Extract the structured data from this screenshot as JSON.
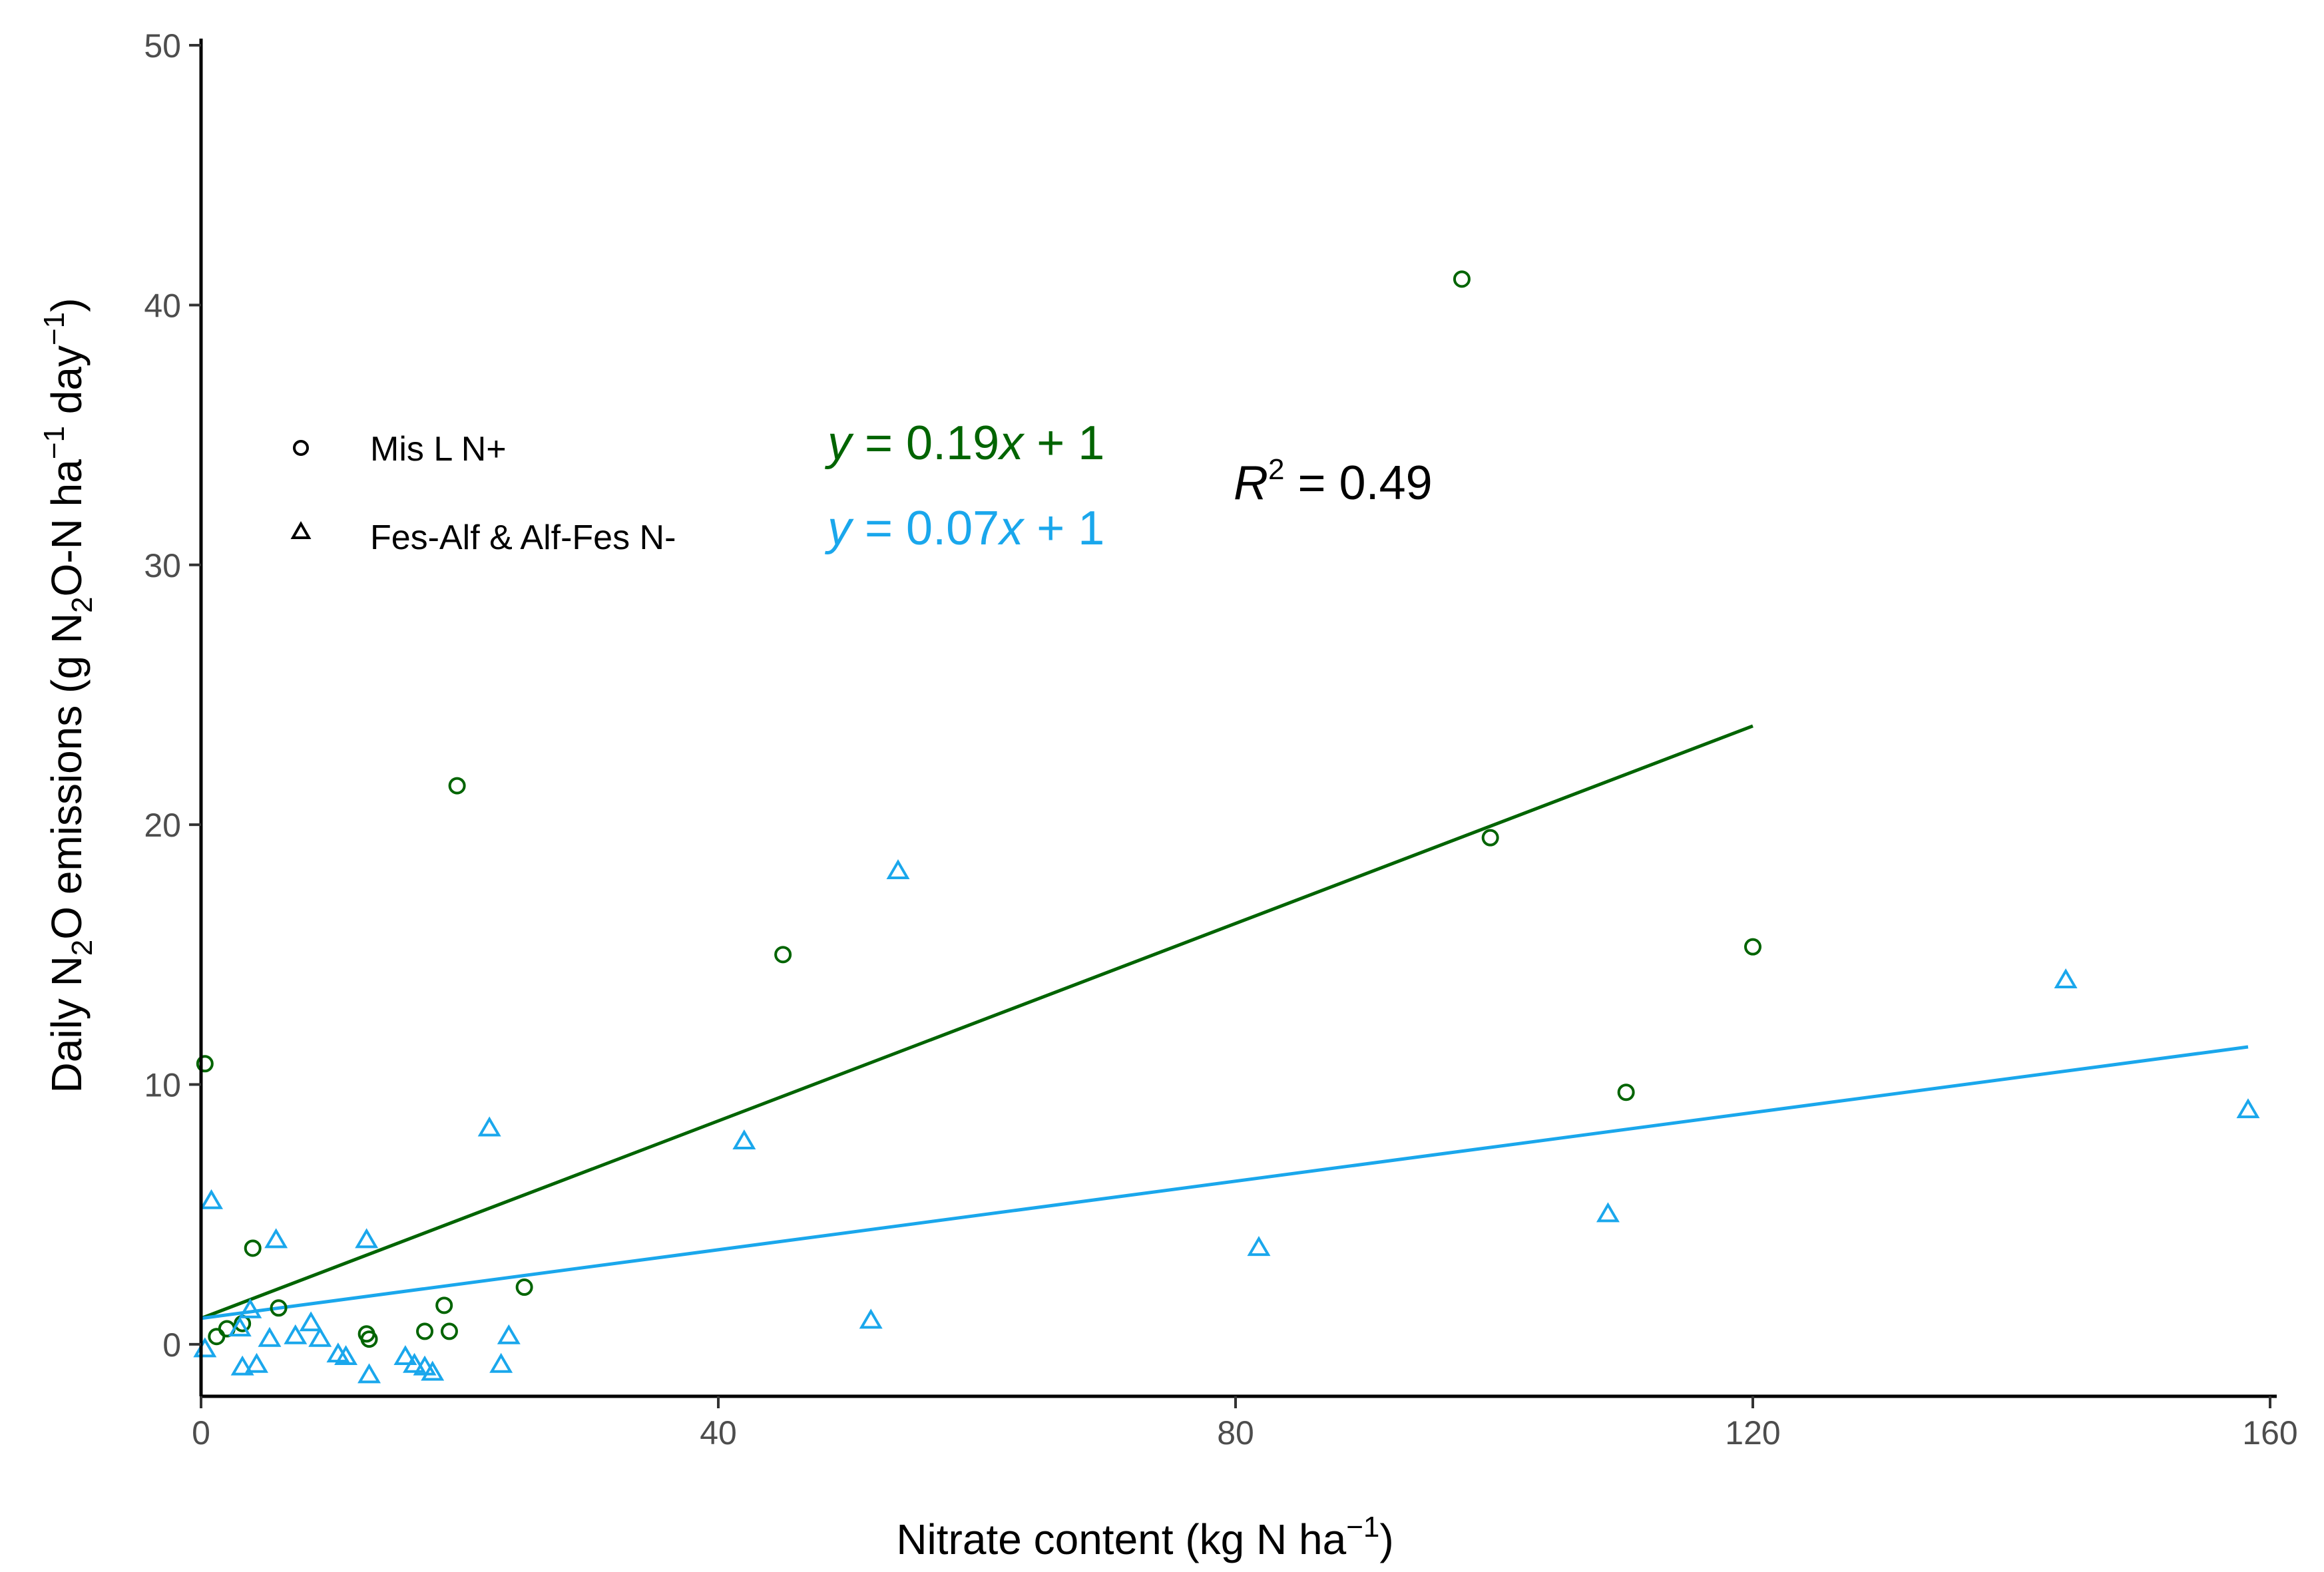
{
  "chart_data": {
    "type": "scatter",
    "xlabel": {
      "main": "Nitrate content (kg N ha",
      "sup": "−1",
      "end": ")"
    },
    "ylabel": {
      "part1": "Daily N",
      "sub1": "2",
      "part2": "O emissions (g N",
      "sub2": "2",
      "part3": "O-N ha",
      "sup1": "−1",
      "part4": " day",
      "sup2": "−1",
      "part5": ")"
    },
    "xlim": [
      0,
      160
    ],
    "ylim": [
      -2,
      50
    ],
    "x_ticks": [
      0,
      40,
      80,
      120,
      160
    ],
    "x_tick_labels": [
      "0",
      "40",
      "80",
      "120",
      "160"
    ],
    "y_ticks": [
      0,
      10,
      20,
      30,
      40,
      50
    ],
    "y_tick_labels": [
      "0",
      "10",
      "20",
      "30",
      "40",
      "50"
    ],
    "grid": false,
    "legend_position": "top-left",
    "series": [
      {
        "name": "Mis L N+",
        "marker": "circle",
        "color": "#006400",
        "points": [
          [
            0.3,
            10.8
          ],
          [
            1.2,
            0.3
          ],
          [
            2,
            0.6
          ],
          [
            3.2,
            0.8
          ],
          [
            4,
            3.7
          ],
          [
            6,
            1.4
          ],
          [
            12.8,
            0.4
          ],
          [
            13,
            0.2
          ],
          [
            17.3,
            0.5
          ],
          [
            18.8,
            1.5
          ],
          [
            19.2,
            0.5
          ],
          [
            19.8,
            21.5
          ],
          [
            25,
            2.2
          ],
          [
            45,
            15
          ],
          [
            97.5,
            41
          ],
          [
            99.7,
            19.5
          ],
          [
            110.2,
            9.7
          ],
          [
            120,
            15.3
          ]
        ],
        "fit": {
          "slope": 0.19,
          "intercept": 1
        },
        "equation": {
          "lhs": "y",
          "eq": " = 0.19",
          "var": "x",
          "rest": " + 1"
        }
      },
      {
        "name": "Fes-Alf & Alf-Fes N-",
        "marker": "triangle",
        "color": "#1aa7ec",
        "points": [
          [
            0.3,
            -0.2
          ],
          [
            0.8,
            5.5
          ],
          [
            3,
            0.6
          ],
          [
            3.2,
            -0.9
          ],
          [
            3.8,
            1.3
          ],
          [
            4.3,
            -0.8
          ],
          [
            5.3,
            0.2
          ],
          [
            5.8,
            4.0
          ],
          [
            7.3,
            0.3
          ],
          [
            8.5,
            0.8
          ],
          [
            9.2,
            0.2
          ],
          [
            10.6,
            -0.4
          ],
          [
            11.2,
            -0.5
          ],
          [
            12.8,
            4.0
          ],
          [
            13,
            -1.2
          ],
          [
            15.8,
            -0.5
          ],
          [
            16.5,
            -0.8
          ],
          [
            17.3,
            -0.9
          ],
          [
            17.9,
            -1.1
          ],
          [
            22.3,
            8.3
          ],
          [
            23.2,
            -0.8
          ],
          [
            23.8,
            0.3
          ],
          [
            42,
            7.8
          ],
          [
            51.8,
            0.9
          ],
          [
            53.9,
            18.2
          ],
          [
            81.8,
            3.7
          ],
          [
            108.8,
            5.0
          ],
          [
            144.2,
            14
          ],
          [
            158.3,
            9.0
          ]
        ],
        "fit": {
          "slope": 0.066,
          "intercept": 1.0
        },
        "equation": {
          "lhs": "y",
          "eq": " = 0.07",
          "var": "x",
          "rest": " + 1"
        }
      }
    ],
    "annotations": {
      "r2_symbol": "R",
      "r2_sup": "2",
      "r2_value": " = 0.49"
    }
  }
}
